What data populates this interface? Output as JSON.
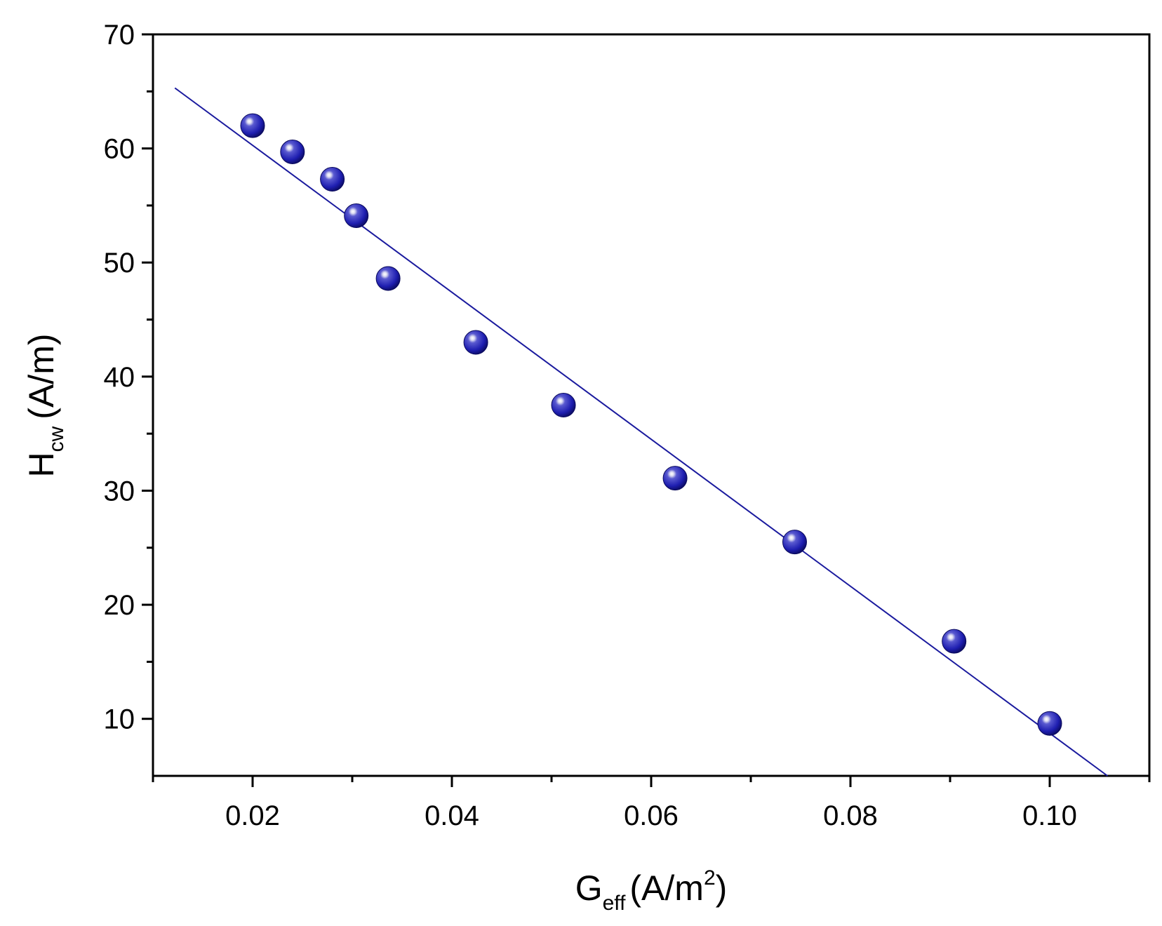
{
  "chart_data": {
    "type": "scatter",
    "title": "",
    "xlabel": {
      "main": "G",
      "sub": "eff",
      "units_prefix": "(A/m",
      "units_sup": "2",
      "units_suffix": ")"
    },
    "ylabel": {
      "main": "H",
      "sub": "cw",
      "units": "(A/m)"
    },
    "xlim": [
      0.01,
      0.11
    ],
    "ylim": [
      5,
      70
    ],
    "x_ticks": [
      0.02,
      0.04,
      0.06,
      0.08,
      0.1
    ],
    "x_tick_labels": [
      "0.02",
      "0.04",
      "0.06",
      "0.08",
      "0.10"
    ],
    "x_minor_ticks": [
      0.01,
      0.03,
      0.05,
      0.07,
      0.09,
      0.11
    ],
    "y_ticks": [
      10,
      20,
      30,
      40,
      50,
      60,
      70
    ],
    "y_tick_labels": [
      "10",
      "20",
      "30",
      "40",
      "50",
      "60",
      "70"
    ],
    "y_minor_ticks": [
      15,
      25,
      35,
      45,
      55,
      65
    ],
    "grid": false,
    "legend": "none",
    "series": [
      {
        "kind": "points",
        "color": "#1a1a9e",
        "x": [
          0.02,
          0.024,
          0.028,
          0.0304,
          0.0336,
          0.0424,
          0.0512,
          0.0624,
          0.0744,
          0.0904,
          0.1
        ],
        "y": [
          62.0,
          59.7,
          57.3,
          54.1,
          48.6,
          43.0,
          37.5,
          31.1,
          25.5,
          16.8,
          9.6
        ]
      },
      {
        "kind": "fit-line",
        "color": "#1a1a9e",
        "x": [
          0.0122,
          0.1058
        ],
        "y": [
          65.3,
          5.0
        ]
      }
    ]
  }
}
